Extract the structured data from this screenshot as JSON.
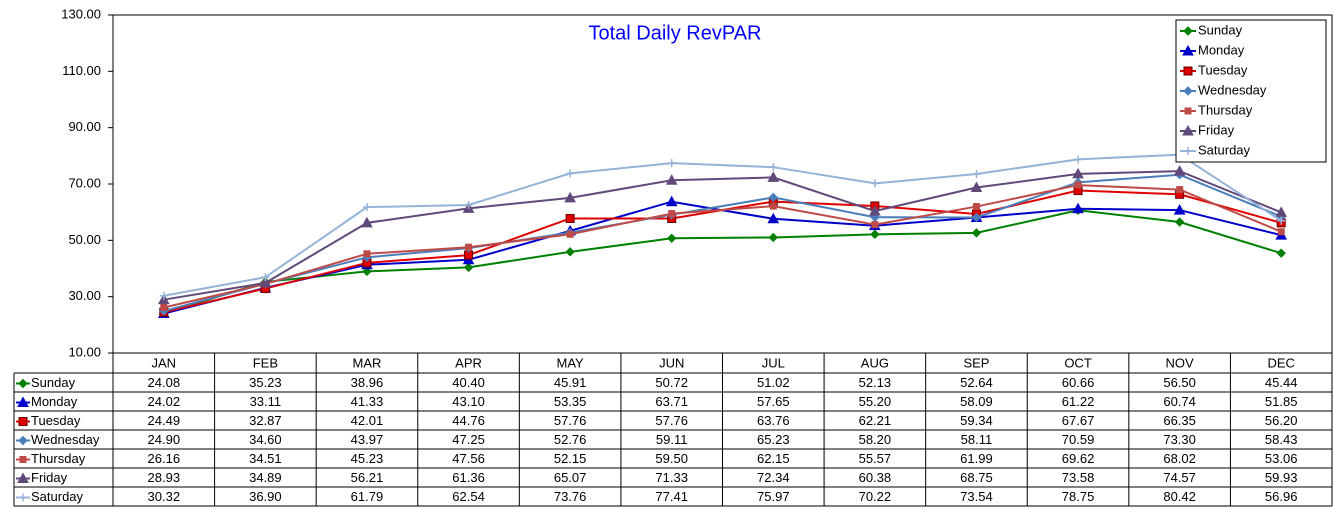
{
  "chart_data": {
    "type": "line",
    "title": "Total Daily RevPAR",
    "categories": [
      "JAN",
      "FEB",
      "MAR",
      "APR",
      "MAY",
      "JUN",
      "JUL",
      "AUG",
      "SEP",
      "OCT",
      "NOV",
      "DEC"
    ],
    "ylim": [
      10,
      130
    ],
    "yticks": [
      {
        "value": 10,
        "label": "10.00"
      },
      {
        "value": 30,
        "label": "30.00"
      },
      {
        "value": 50,
        "label": "50.00"
      },
      {
        "value": 70,
        "label": "70.00"
      },
      {
        "value": 90,
        "label": "90.00"
      },
      {
        "value": 110,
        "label": "110.00"
      },
      {
        "value": 130,
        "label": "130.00"
      }
    ],
    "legend": "top-right",
    "series": [
      {
        "name": "Sunday",
        "color": "#008000",
        "marker": "diamond",
        "values": [
          24.08,
          35.23,
          38.96,
          40.4,
          45.91,
          50.72,
          51.02,
          52.13,
          52.64,
          60.66,
          56.5,
          45.44
        ],
        "value_labels": [
          "24.08",
          "35.23",
          "38.96",
          "40.40",
          "45.91",
          "50.72",
          "51.02",
          "52.13",
          "52.64",
          "60.66",
          "56.50",
          "45.44"
        ]
      },
      {
        "name": "Monday",
        "color": "#0000cc",
        "marker": "triangle",
        "values": [
          24.02,
          33.11,
          41.33,
          43.1,
          53.35,
          63.71,
          57.65,
          55.2,
          58.09,
          61.22,
          60.74,
          51.85
        ],
        "value_labels": [
          "24.02",
          "33.11",
          "41.33",
          "43.10",
          "53.35",
          "63.71",
          "57.65",
          "55.20",
          "58.09",
          "61.22",
          "60.74",
          "51.85"
        ]
      },
      {
        "name": "Tuesday",
        "color": "#e00000",
        "marker": "square",
        "values": [
          24.49,
          32.87,
          42.01,
          44.76,
          57.76,
          57.76,
          63.76,
          62.21,
          59.34,
          67.67,
          66.35,
          56.2
        ],
        "value_labels": [
          "24.49",
          "32.87",
          "42.01",
          "44.76",
          "57.76",
          "57.76",
          "63.76",
          "62.21",
          "59.34",
          "67.67",
          "66.35",
          "56.20"
        ]
      },
      {
        "name": "Wednesday",
        "color": "#4a7ebb",
        "marker": "diamond",
        "values": [
          24.9,
          34.6,
          43.97,
          47.25,
          52.76,
          59.11,
          65.23,
          58.2,
          58.11,
          70.59,
          73.3,
          58.43
        ],
        "value_labels": [
          "24.90",
          "34.60",
          "43.97",
          "47.25",
          "52.76",
          "59.11",
          "65.23",
          "58.20",
          "58.11",
          "70.59",
          "73.30",
          "58.43"
        ]
      },
      {
        "name": "Thursday",
        "color": "#be4b48",
        "marker": "square-small",
        "values": [
          26.16,
          34.51,
          45.23,
          47.56,
          52.15,
          59.5,
          62.15,
          55.57,
          61.99,
          69.62,
          68.02,
          53.06
        ],
        "value_labels": [
          "26.16",
          "34.51",
          "45.23",
          "47.56",
          "52.15",
          "59.50",
          "62.15",
          "55.57",
          "61.99",
          "69.62",
          "68.02",
          "53.06"
        ]
      },
      {
        "name": "Friday",
        "color": "#604a7b",
        "marker": "triangle",
        "values": [
          28.93,
          34.89,
          56.21,
          61.36,
          65.07,
          71.33,
          72.34,
          60.38,
          68.75,
          73.58,
          74.57,
          59.93
        ],
        "value_labels": [
          "28.93",
          "34.89",
          "56.21",
          "61.36",
          "65.07",
          "71.33",
          "72.34",
          "60.38",
          "68.75",
          "73.58",
          "74.57",
          "59.93"
        ]
      },
      {
        "name": "Saturday",
        "color": "#95b3d7",
        "marker": "plus",
        "values": [
          30.32,
          36.9,
          61.79,
          62.54,
          73.76,
          77.41,
          75.97,
          70.22,
          73.54,
          78.75,
          80.42,
          56.96
        ],
        "value_labels": [
          "30.32",
          "36.90",
          "61.79",
          "62.54",
          "73.76",
          "77.41",
          "75.97",
          "70.22",
          "73.54",
          "78.75",
          "80.42",
          "56.96"
        ]
      }
    ]
  }
}
